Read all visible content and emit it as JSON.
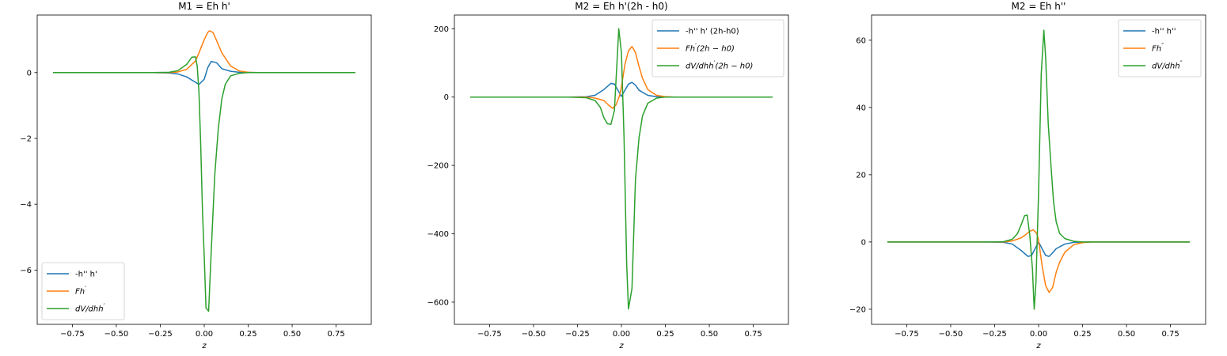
{
  "chart_data": [
    {
      "type": "line",
      "title": "M1 = Eh h'",
      "xlabel": "z",
      "ylabel": "",
      "xlim": [
        -0.95,
        0.95
      ],
      "ylim": [
        -7.65,
        1.75
      ],
      "xticks": [
        -0.75,
        -0.5,
        -0.25,
        0.0,
        0.25,
        0.5,
        0.75
      ],
      "xtick_labels": [
        "−0.75",
        "−0.50",
        "−0.25",
        "0.00",
        "0.25",
        "0.50",
        "0.75"
      ],
      "yticks": [
        0,
        -2,
        -4,
        -6
      ],
      "ytick_labels": [
        "0",
        "−2",
        "−4",
        "−6"
      ],
      "legend_position": "lower-left",
      "grid": false,
      "series": [
        {
          "name": "-h'' h'",
          "color": "#1f77b4",
          "x": [
            -0.86,
            -0.3,
            -0.2,
            -0.15,
            -0.1,
            -0.06,
            -0.03,
            0.0,
            0.02,
            0.04,
            0.07,
            0.1,
            0.15,
            0.2,
            0.3,
            0.86
          ],
          "y": [
            0,
            0,
            -0.01,
            -0.04,
            -0.13,
            -0.26,
            -0.36,
            -0.2,
            0.15,
            0.34,
            0.3,
            0.12,
            0.04,
            0.01,
            0,
            0
          ]
        },
        {
          "name": "Fh′",
          "color": "#ff7f0e",
          "x": [
            -0.86,
            -0.3,
            -0.2,
            -0.15,
            -0.1,
            -0.05,
            -0.03,
            0.0,
            0.02,
            0.03,
            0.05,
            0.07,
            0.1,
            0.15,
            0.2,
            0.25,
            0.3,
            0.86
          ],
          "y": [
            0,
            0,
            0.0,
            0.02,
            0.1,
            0.35,
            0.6,
            1.0,
            1.22,
            1.27,
            1.22,
            0.98,
            0.6,
            0.2,
            0.05,
            0.01,
            0,
            0
          ],
          "legend_label": {
            "base": "Fh",
            "sup": "′",
            "suffix": ""
          }
        },
        {
          "name": "dV/dhh′",
          "color": "#2ca02c",
          "x": [
            -0.86,
            -0.3,
            -0.2,
            -0.15,
            -0.1,
            -0.07,
            -0.05,
            -0.04,
            -0.03,
            -0.02,
            -0.01,
            0.0,
            0.01,
            0.025,
            0.04,
            0.06,
            0.08,
            0.1,
            0.12,
            0.15,
            0.2,
            0.25,
            0.3,
            0.86
          ],
          "y": [
            0,
            0,
            0.01,
            0.06,
            0.25,
            0.47,
            0.48,
            0.2,
            -0.6,
            -2.2,
            -4.2,
            -5.6,
            -7.15,
            -7.25,
            -5.4,
            -3.1,
            -1.7,
            -0.8,
            -0.35,
            -0.1,
            -0.02,
            0,
            0,
            0
          ],
          "legend_label": {
            "base": "dV/dhh",
            "sup": "′",
            "suffix": ""
          }
        }
      ]
    },
    {
      "type": "line",
      "title": "M2 = Eh h'(2h - h0)",
      "xlabel": "z",
      "ylabel": "",
      "xlim": [
        -0.95,
        0.95
      ],
      "ylim": [
        -665,
        240
      ],
      "xticks": [
        -0.75,
        -0.5,
        -0.25,
        0.0,
        0.25,
        0.5,
        0.75
      ],
      "xtick_labels": [
        "−0.75",
        "−0.50",
        "−0.25",
        "0.00",
        "0.25",
        "0.50",
        "0.75"
      ],
      "yticks": [
        200,
        0,
        -200,
        -400,
        -600
      ],
      "ytick_labels": [
        "200",
        "0",
        "−200",
        "−400",
        "−600"
      ],
      "legend_position": "top-right",
      "grid": false,
      "series": [
        {
          "name": "-h'' h' (2h-h0)",
          "color": "#1f77b4",
          "x": [
            -0.86,
            -0.3,
            -0.2,
            -0.15,
            -0.1,
            -0.06,
            -0.04,
            -0.02,
            0.0,
            0.02,
            0.04,
            0.06,
            0.08,
            0.1,
            0.15,
            0.2,
            0.3,
            0.86
          ],
          "y": [
            0,
            0,
            1,
            5,
            22,
            40,
            38,
            20,
            2,
            20,
            38,
            43,
            35,
            20,
            5,
            1,
            0,
            0
          ]
        },
        {
          "name": "Fh′(2h − h0)",
          "color": "#ff7f0e",
          "x": [
            -0.86,
            -0.3,
            -0.2,
            -0.15,
            -0.1,
            -0.07,
            -0.05,
            -0.03,
            -0.01,
            0.0,
            0.02,
            0.04,
            0.06,
            0.08,
            0.1,
            0.12,
            0.15,
            0.2,
            0.25,
            0.3,
            0.86
          ],
          "y": [
            0,
            0,
            0,
            -3,
            -10,
            -25,
            -33,
            -22,
            5,
            30,
            95,
            135,
            148,
            130,
            90,
            55,
            22,
            5,
            1,
            0,
            0
          ],
          "legend_label": {
            "base": "Fh",
            "sup": "′",
            "suffix": "(2h − h0)"
          }
        },
        {
          "name": "dV/dhh′(2h − h0)",
          "color": "#2ca02c",
          "x": [
            -0.86,
            -0.3,
            -0.2,
            -0.15,
            -0.12,
            -0.1,
            -0.08,
            -0.06,
            -0.04,
            -0.03,
            -0.015,
            0.0,
            0.015,
            0.03,
            0.04,
            0.06,
            0.08,
            0.1,
            0.12,
            0.15,
            0.2,
            0.25,
            0.3,
            0.86
          ],
          "y": [
            0,
            0,
            -2,
            -10,
            -30,
            -60,
            -78,
            -80,
            -40,
            55,
            200,
            130,
            -120,
            -490,
            -620,
            -560,
            -240,
            -120,
            -55,
            -18,
            -3,
            0,
            0,
            0
          ],
          "legend_label": {
            "base": "dV/dhh",
            "sup": "′",
            "suffix": "(2h − h0)"
          }
        }
      ]
    },
    {
      "type": "line",
      "title": "M2 = Eh h''",
      "xlabel": "z",
      "ylabel": "",
      "xlim": [
        -0.95,
        0.95
      ],
      "ylim": [
        -24.5,
        67.5
      ],
      "xticks": [
        -0.75,
        -0.5,
        -0.25,
        0.0,
        0.25,
        0.5,
        0.75
      ],
      "xtick_labels": [
        "−0.75",
        "−0.50",
        "−0.25",
        "0.00",
        "0.25",
        "0.50",
        "0.75"
      ],
      "yticks": [
        60,
        40,
        20,
        0,
        -20
      ],
      "ytick_labels": [
        "60",
        "40",
        "20",
        "0",
        "−20"
      ],
      "legend_position": "top-right",
      "grid": false,
      "series": [
        {
          "name": "-h'' h''",
          "color": "#1f77b4",
          "x": [
            -0.86,
            -0.3,
            -0.2,
            -0.15,
            -0.1,
            -0.06,
            -0.04,
            -0.02,
            0.0,
            0.02,
            0.04,
            0.06,
            0.08,
            0.1,
            0.15,
            0.2,
            0.3,
            0.86
          ],
          "y": [
            0,
            0,
            -0.1,
            -0.6,
            -2.5,
            -4.3,
            -4.0,
            -2.0,
            0,
            -2.0,
            -4.0,
            -4.3,
            -3.2,
            -2.0,
            -0.6,
            -0.1,
            0,
            0
          ]
        },
        {
          "name": "Fh″",
          "color": "#ff7f0e",
          "x": [
            -0.86,
            -0.3,
            -0.2,
            -0.15,
            -0.1,
            -0.07,
            -0.05,
            -0.03,
            -0.01,
            0.0,
            0.02,
            0.04,
            0.06,
            0.08,
            0.1,
            0.12,
            0.15,
            0.2,
            0.25,
            0.3,
            0.86
          ],
          "y": [
            0,
            0,
            0,
            0.3,
            1.2,
            2.3,
            3.2,
            3.6,
            2.5,
            0.5,
            -7.0,
            -13.0,
            -15.0,
            -13.5,
            -9.0,
            -6.0,
            -3.0,
            -0.8,
            -0.2,
            0,
            0
          ],
          "legend_label": {
            "base": "Fh",
            "sup": "″",
            "suffix": ""
          }
        },
        {
          "name": "dV/dhh″",
          "color": "#2ca02c",
          "x": [
            -0.86,
            -0.3,
            -0.2,
            -0.15,
            -0.12,
            -0.1,
            -0.08,
            -0.065,
            -0.05,
            -0.035,
            -0.025,
            -0.015,
            0.0,
            0.015,
            0.03,
            0.04,
            0.055,
            0.07,
            0.085,
            0.1,
            0.12,
            0.15,
            0.2,
            0.25,
            0.3,
            0.86
          ],
          "y": [
            0,
            0,
            0.1,
            0.8,
            2.5,
            5.0,
            7.8,
            8.0,
            2.0,
            -8.0,
            -20.0,
            -12.0,
            15.0,
            50.0,
            63.0,
            55.0,
            35.0,
            23.0,
            12.0,
            6.0,
            2.5,
            1.0,
            0.2,
            0,
            0,
            0
          ],
          "legend_label": {
            "base": "dV/dhh",
            "sup": "″",
            "suffix": ""
          }
        }
      ]
    }
  ]
}
